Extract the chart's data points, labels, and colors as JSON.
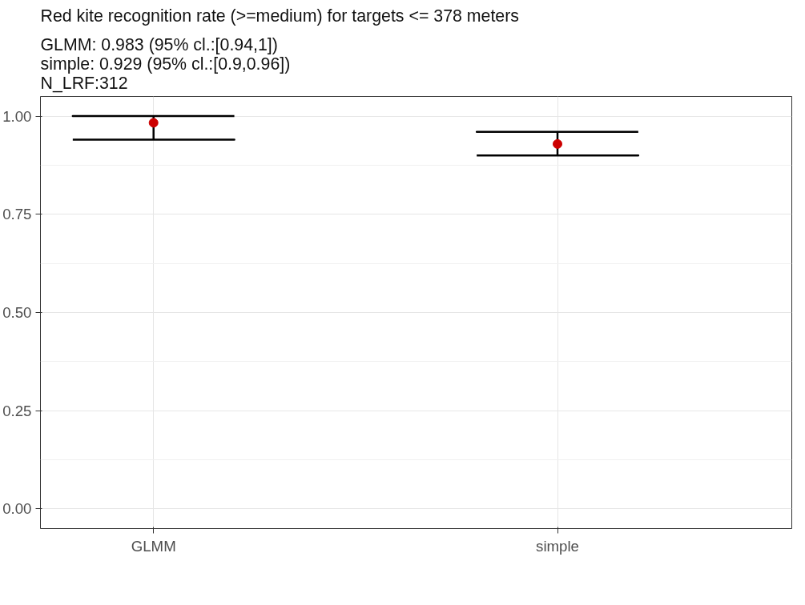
{
  "chart_data": {
    "type": "scatter",
    "title": "Red kite recognition rate (>=medium) for targets <= 378 meters",
    "subtitle": "GLMM: 0.983 (95% cl.:[0.94,1])\nsimple: 0.929 (95% cl.:[0.9,0.96])\n N_LRF:312",
    "categories": [
      "GLMM",
      "simple"
    ],
    "series": [
      {
        "color": "#cc0000",
        "values": [
          0.983,
          0.929
        ],
        "errors": [
          [
            0.94,
            1
          ],
          [
            0.9,
            0.96
          ]
        ]
      }
    ],
    "ylim": [
      -0.05,
      1.05
    ],
    "yticks": [
      {
        "value": 0,
        "label": "0.00"
      },
      {
        "value": 0.25,
        "label": "0.25"
      },
      {
        "value": 0.5,
        "label": "0.50"
      },
      {
        "value": 0.75,
        "label": "0.75"
      },
      {
        "value": 1,
        "label": "1.00"
      }
    ],
    "grid": true,
    "marker": "circle"
  }
}
